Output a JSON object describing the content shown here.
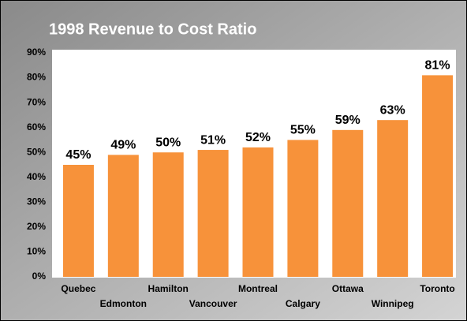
{
  "chart_data": {
    "type": "bar",
    "title": "1998 Revenue to Cost Ratio",
    "categories": [
      "Quebec",
      "Edmonton",
      "Hamilton",
      "Vancouver",
      "Montreal",
      "Calgary",
      "Ottawa",
      "Winnipeg",
      "Toronto"
    ],
    "values": [
      45,
      49,
      50,
      51,
      52,
      55,
      59,
      63,
      81
    ],
    "value_labels": [
      "45%",
      "49%",
      "50%",
      "51%",
      "52%",
      "55%",
      "59%",
      "63%",
      "81%"
    ],
    "color": "#f7923a",
    "ylim": [
      0,
      90
    ],
    "yticks": [
      {
        "value": 0,
        "label": "0%"
      },
      {
        "value": 10,
        "label": "10%"
      },
      {
        "value": 20,
        "label": "20%"
      },
      {
        "value": 30,
        "label": "30%"
      },
      {
        "value": 40,
        "label": "40%"
      },
      {
        "value": 50,
        "label": "50%"
      },
      {
        "value": 60,
        "label": "60%"
      },
      {
        "value": 70,
        "label": "70%"
      },
      {
        "value": 80,
        "label": "80%"
      },
      {
        "value": 90,
        "label": "90%"
      }
    ]
  }
}
